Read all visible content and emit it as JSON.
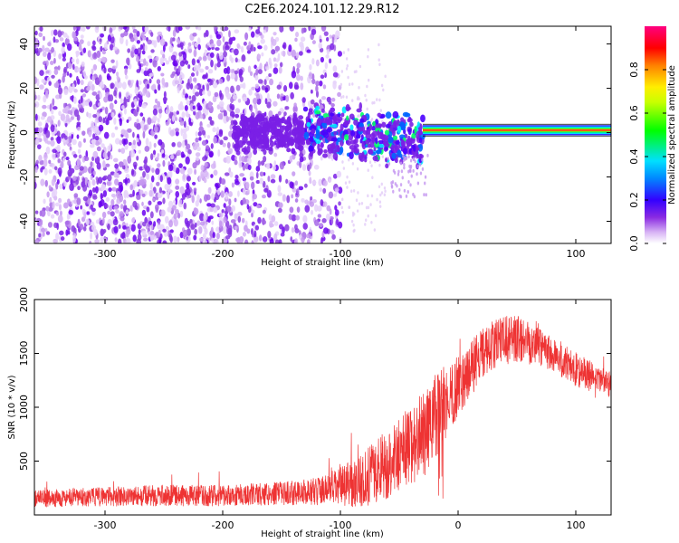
{
  "title": "C2E6.2024.101.12.29.R12",
  "chart_data": [
    {
      "type": "heatmap",
      "xlabel": "Height of straight line (km)",
      "ylabel": "Frequency (Hz)",
      "xlim": [
        -360,
        130
      ],
      "ylim": [
        -50,
        48
      ],
      "xticks": [
        -300,
        -200,
        -100,
        0,
        100
      ],
      "xtick_labels": [
        "-300",
        "-200",
        "-100",
        "0",
        "100"
      ],
      "yticks": [
        -40,
        -20,
        0,
        20,
        40
      ],
      "ytick_labels": [
        "-40",
        "-20",
        "0",
        "20",
        "40"
      ],
      "colorbar": {
        "label": "Normalized spectral amplitude",
        "range": [
          0,
          1
        ],
        "ticks": [
          0,
          0.2,
          0.4,
          0.6,
          0.8
        ],
        "tick_labels": [
          "0.0",
          "0.2",
          "0.4",
          "0.6",
          "0.8"
        ],
        "colormap": "white-purple-blue-cyan-green-yellow-red-magenta"
      },
      "description_regions": [
        {
          "x_range": [
            -360,
            -100
          ],
          "freq_range": [
            -50,
            48
          ],
          "amplitude": "0.05-0.3 noise"
        },
        {
          "x_range": [
            -130,
            -30
          ],
          "freq_range": [
            -15,
            12
          ],
          "amplitude": "0.2-0.5"
        },
        {
          "x_range": [
            -30,
            130
          ],
          "freq_range": [
            -1,
            3
          ],
          "amplitude": "0.8-1.0 carrier line"
        }
      ]
    },
    {
      "type": "line",
      "xlabel": "Height of straight line (km)",
      "ylabel": "SNR (10 * v/v)",
      "xlim": [
        -360,
        130
      ],
      "ylim": [
        0,
        2000
      ],
      "xticks": [
        -300,
        -200,
        -100,
        0,
        100
      ],
      "xtick_labels": [
        "-300",
        "-200",
        "-100",
        "0",
        "100"
      ],
      "yticks": [
        500,
        1000,
        1500,
        2000
      ],
      "ytick_labels": [
        "500",
        "1000",
        "1500",
        "2000"
      ],
      "series": [
        {
          "color": "#ee3333",
          "envelope": {
            "x": [
              -360,
              -300,
              -250,
              -200,
              -150,
              -120,
              -100,
              -80,
              -60,
              -40,
              -20,
              -15,
              -10,
              0,
              10,
              20,
              30,
              40,
              50,
              60,
              70,
              80,
              90,
              100,
              110,
              120,
              130
            ],
            "mean": [
              150,
              170,
              180,
              180,
              200,
              220,
              260,
              330,
              480,
              650,
              850,
              950,
              1050,
              1200,
              1350,
              1480,
              1580,
              1620,
              1640,
              1620,
              1580,
              1500,
              1420,
              1350,
              1300,
              1250,
              1220
            ],
            "spread": [
              80,
              90,
              100,
              100,
              110,
              130,
              180,
              260,
              330,
              380,
              430,
              400,
              350,
              280,
              260,
              250,
              230,
              230,
              220,
              220,
              200,
              180,
              170,
              160,
              150,
              140,
              130
            ]
          }
        }
      ]
    }
  ]
}
